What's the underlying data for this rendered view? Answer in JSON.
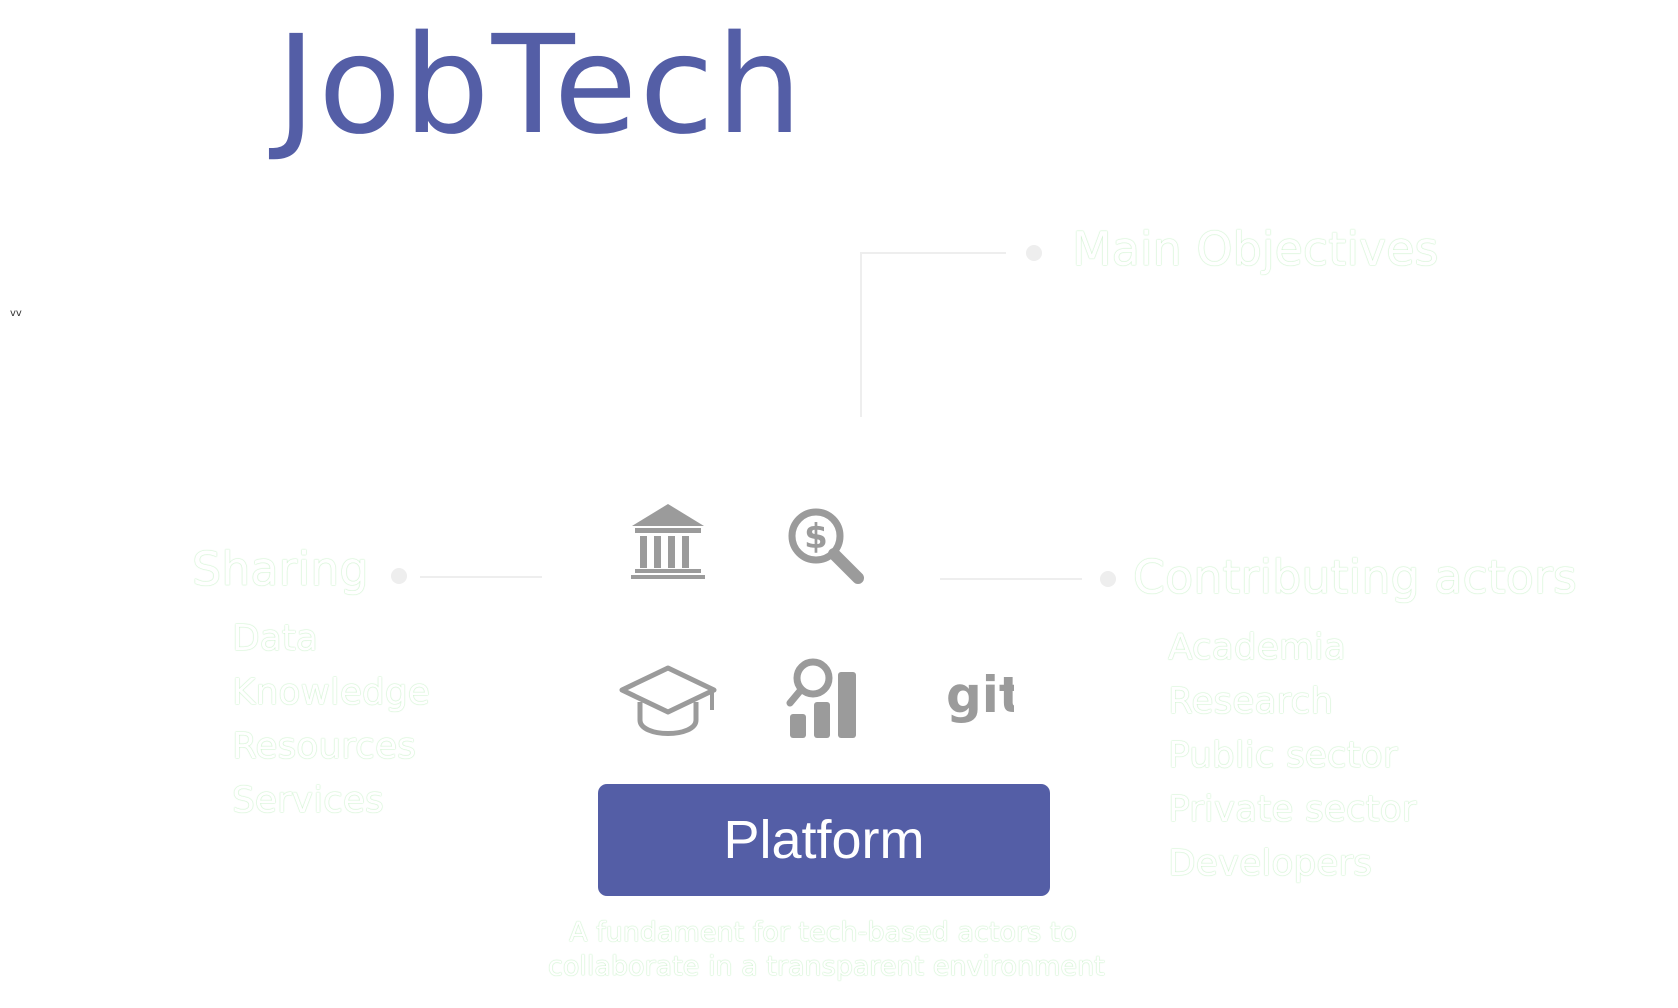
{
  "title": "JobTech",
  "stray_text": "vv",
  "objectives": {
    "heading": "Main Objectives"
  },
  "sharing": {
    "heading": "Sharing",
    "items": [
      "Data",
      "Knowledge",
      "Resources",
      "Services"
    ]
  },
  "contributing": {
    "heading": "Contributing actors",
    "items": [
      "Academia",
      "Research",
      "Public sector",
      "Private sector",
      "Developers"
    ]
  },
  "platform": {
    "label": "Platform",
    "tagline_line1": "A fundament for tech-based actors to",
    "tagline_line2": "collaborate in a transparent environment"
  },
  "icons": {
    "git_label": "git",
    "names": [
      "bank-icon",
      "money-search-icon",
      "graduation-cap-icon",
      "user-analytics-icon",
      "git-icon"
    ],
    "color": "#9b9b9b"
  },
  "colors": {
    "accent": "#545ea6",
    "ghost_outline": "#b9ecb9",
    "connector": "#eeeeee",
    "icon": "#9b9b9b"
  }
}
